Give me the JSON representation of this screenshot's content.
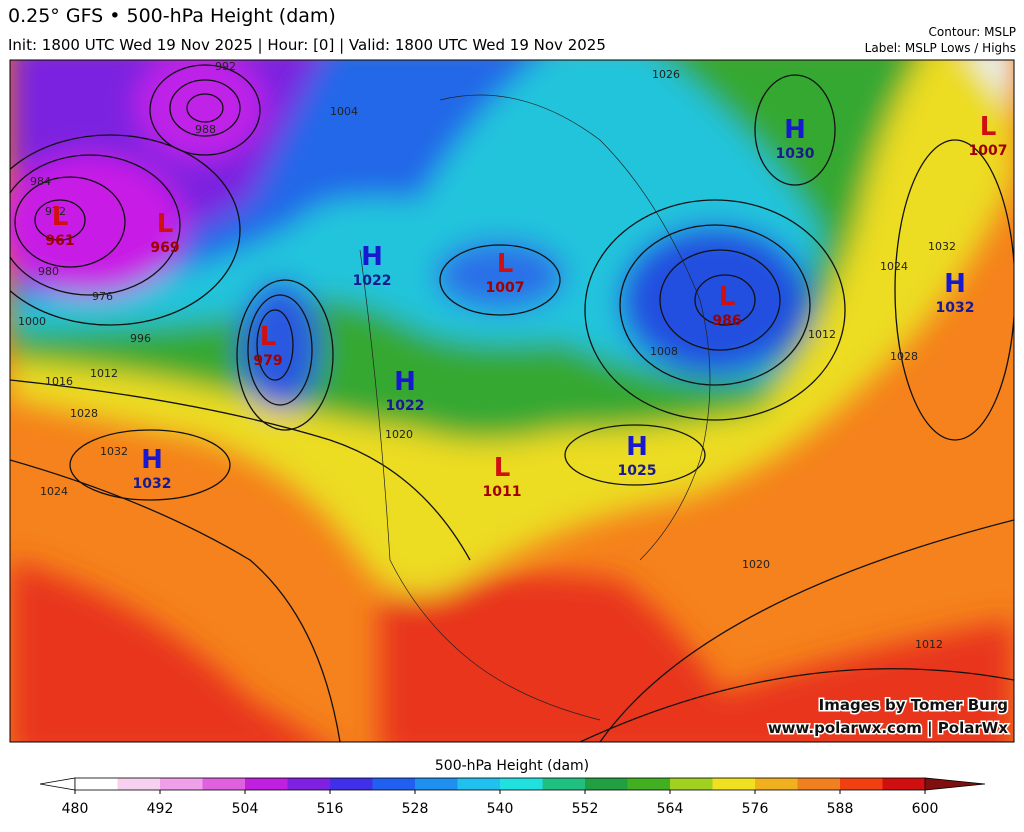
{
  "header": {
    "title": "0.25° GFS • 500-hPa Height (dam)",
    "subtitle": "Init: 1800 UTC Wed 19 Nov 2025 | Hour: [0] | Valid: 1800 UTC Wed 19 Nov 2025",
    "contour_note": "Contour: MSLP",
    "label_note": "Label: MSLP Lows / Highs"
  },
  "centers": [
    {
      "letter": "L",
      "value": "961"
    },
    {
      "letter": "L",
      "value": "969"
    },
    {
      "letter": "L",
      "value": "979"
    },
    {
      "letter": "H",
      "value": "1022"
    },
    {
      "letter": "L",
      "value": "1007"
    },
    {
      "letter": "H",
      "value": "1022"
    },
    {
      "letter": "L",
      "value": "1011"
    },
    {
      "letter": "H",
      "value": "1025"
    },
    {
      "letter": "L",
      "value": "986"
    },
    {
      "letter": "H",
      "value": "1030"
    },
    {
      "letter": "L",
      "value": "1007"
    },
    {
      "letter": "H",
      "value": "1032"
    },
    {
      "letter": "H",
      "value": "1032"
    }
  ],
  "contour_labels": [
    "992",
    "988",
    "984",
    "980",
    "976",
    "972",
    "1000",
    "996",
    "1004",
    "1012",
    "1016",
    "1028",
    "1032",
    "1024",
    "1020",
    "1020",
    "1026",
    "1008",
    "1012",
    "1024",
    "1028",
    "1032",
    "1012"
  ],
  "credits": [
    "Images by Tomer Burg",
    "www.polarwx.com | PolarWx"
  ],
  "colorbar": {
    "title": "500-hPa Height (dam)",
    "range": [
      480,
      600
    ],
    "ticks": [
      480,
      492,
      504,
      516,
      528,
      540,
      552,
      564,
      576,
      588,
      600
    ],
    "colors": [
      "#ffffff",
      "#f8d0f0",
      "#f0a0e8",
      "#e060e0",
      "#c020e0",
      "#8020e0",
      "#4030e8",
      "#2060f0",
      "#2090f0",
      "#20c0f0",
      "#20e0e0",
      "#20c080",
      "#20a040",
      "#40b020",
      "#a0d020",
      "#f0e020",
      "#f0b020",
      "#f08020",
      "#f04010",
      "#d01010"
    ]
  }
}
